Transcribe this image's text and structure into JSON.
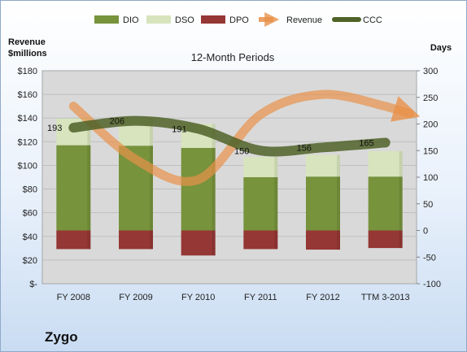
{
  "chart_data": {
    "type": "bar",
    "subtitle": "12-Month Periods",
    "company": "Zygo",
    "y_left_label": [
      "Revenue",
      "$millions"
    ],
    "y_right_label": "Days",
    "categories": [
      "FY 2008",
      "FY 2009",
      "FY 2010",
      "FY 2011",
      "FY 2012",
      "TTM 3-2013"
    ],
    "y_left_ticks": [
      "$-",
      "$20",
      "$40",
      "$60",
      "$80",
      "$100",
      "$120",
      "$140",
      "$160",
      "$180"
    ],
    "y_left_range": [
      0,
      180
    ],
    "y_right_ticks": [
      "-100",
      "-50",
      "0",
      "50",
      "100",
      "150",
      "200",
      "250",
      "300"
    ],
    "y_right_range": [
      -100,
      300
    ],
    "legend": [
      "DIO",
      "DSO",
      "DPO",
      "Revenue",
      "CCC"
    ],
    "colors": {
      "DIO": "#77933c",
      "DSO": "#d7e4bd",
      "DPO": "#953735",
      "Revenue": "#e8914a",
      "CCC": "#4f6228",
      "plot_bg": "#d9d9d9"
    },
    "series": [
      {
        "name": "DIO",
        "axis": "right",
        "values": [
          160,
          159,
          155,
          100,
          101,
          101
        ]
      },
      {
        "name": "DSO",
        "axis": "right",
        "values": [
          50,
          52,
          45,
          38,
          41,
          48
        ]
      },
      {
        "name": "DPO",
        "axis": "right",
        "values": [
          -35,
          -35,
          -47,
          -35,
          -36,
          -33
        ]
      },
      {
        "name": "CCC",
        "axis": "right",
        "values": [
          193,
          206,
          191,
          150,
          156,
          165
        ]
      },
      {
        "name": "Revenue",
        "axis": "left",
        "values": [
          150,
          105,
          88,
          143,
          160,
          150
        ]
      }
    ],
    "ccc_labels": [
      "193",
      "206",
      "191",
      "150",
      "156",
      "165"
    ]
  }
}
